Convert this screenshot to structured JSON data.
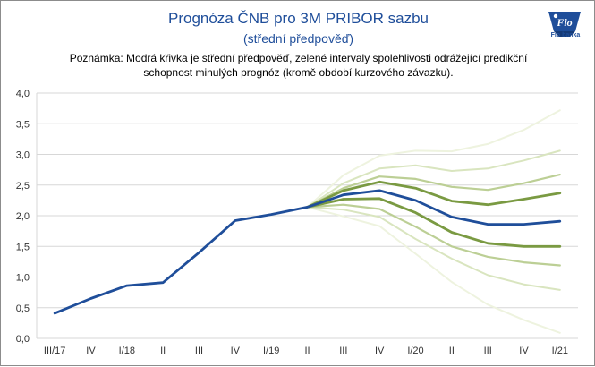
{
  "chart_data": {
    "type": "line",
    "title": "Prognóza ČNB pro 3M PRIBOR sazbu",
    "subtitle": "(střední předpověď)",
    "note": "Poznámka: Modrá křivka je střední předpověď, zelené intervaly spolehlivosti odrážející predikční schopnost minulých prognóz (kromě období kurzového závazku).",
    "categories": [
      "III/17",
      "IV",
      "I/18",
      "II",
      "III",
      "IV",
      "I/19",
      "II",
      "III",
      "IV",
      "I/20",
      "II",
      "III",
      "IV",
      "I/21"
    ],
    "tick_labels": [
      "III/17",
      "IV",
      "I/18",
      "II",
      "III",
      "IV",
      "I/19",
      "II",
      "III",
      "IV",
      "I/20",
      "II",
      "III",
      "IV",
      "I/21"
    ],
    "ylim": [
      0,
      4
    ],
    "yticks": [
      "0,0",
      "0,5",
      "1,0",
      "1,5",
      "2,0",
      "2,5",
      "3,0",
      "3,5",
      "4,0"
    ],
    "grid": true,
    "series": [
      {
        "role": "band-outer",
        "color": "#eef3df",
        "width": 2,
        "upper": [
          null,
          null,
          null,
          null,
          null,
          null,
          null,
          2.14,
          2.66,
          2.98,
          3.06,
          3.05,
          3.17,
          3.4,
          3.72
        ],
        "lower": [
          null,
          null,
          null,
          null,
          null,
          null,
          null,
          2.14,
          1.99,
          1.83,
          1.38,
          0.92,
          0.55,
          0.3,
          0.09
        ]
      },
      {
        "role": "band-3",
        "color": "#d9e5bf",
        "width": 2,
        "upper": [
          null,
          null,
          null,
          null,
          null,
          null,
          null,
          2.14,
          2.53,
          2.77,
          2.82,
          2.73,
          2.77,
          2.9,
          3.06
        ],
        "lower": [
          null,
          null,
          null,
          null,
          null,
          null,
          null,
          2.14,
          2.1,
          1.98,
          1.62,
          1.3,
          1.03,
          0.88,
          0.79
        ]
      },
      {
        "role": "band-2",
        "color": "#bccf95",
        "width": 2.2,
        "upper": [
          null,
          null,
          null,
          null,
          null,
          null,
          null,
          2.14,
          2.45,
          2.64,
          2.6,
          2.47,
          2.42,
          2.53,
          2.67
        ],
        "lower": [
          null,
          null,
          null,
          null,
          null,
          null,
          null,
          2.14,
          2.18,
          2.11,
          1.82,
          1.5,
          1.33,
          1.24,
          1.19
        ]
      },
      {
        "role": "band-1",
        "color": "#7a9a42",
        "width": 2.8,
        "upper": [
          null,
          null,
          null,
          null,
          null,
          null,
          null,
          2.14,
          2.41,
          2.55,
          2.45,
          2.24,
          2.18,
          2.27,
          2.37
        ],
        "lower": [
          null,
          null,
          null,
          null,
          null,
          null,
          null,
          2.14,
          2.27,
          2.28,
          2.05,
          1.73,
          1.55,
          1.5,
          1.5
        ]
      },
      {
        "role": "central",
        "color": "#1f4e9a",
        "width": 2.8,
        "values": [
          0.41,
          0.65,
          0.86,
          0.91,
          1.4,
          1.92,
          2.02,
          2.14,
          2.34,
          2.41,
          2.25,
          1.98,
          1.86,
          1.86,
          1.91
        ]
      }
    ]
  },
  "logo": {
    "text": "Fio",
    "caption": "Fio banka",
    "color": "#1f4e9a"
  },
  "colors": {
    "title": "#1f4e9a",
    "grid": "#d7d7d7",
    "frame": "#8c8c8c"
  }
}
